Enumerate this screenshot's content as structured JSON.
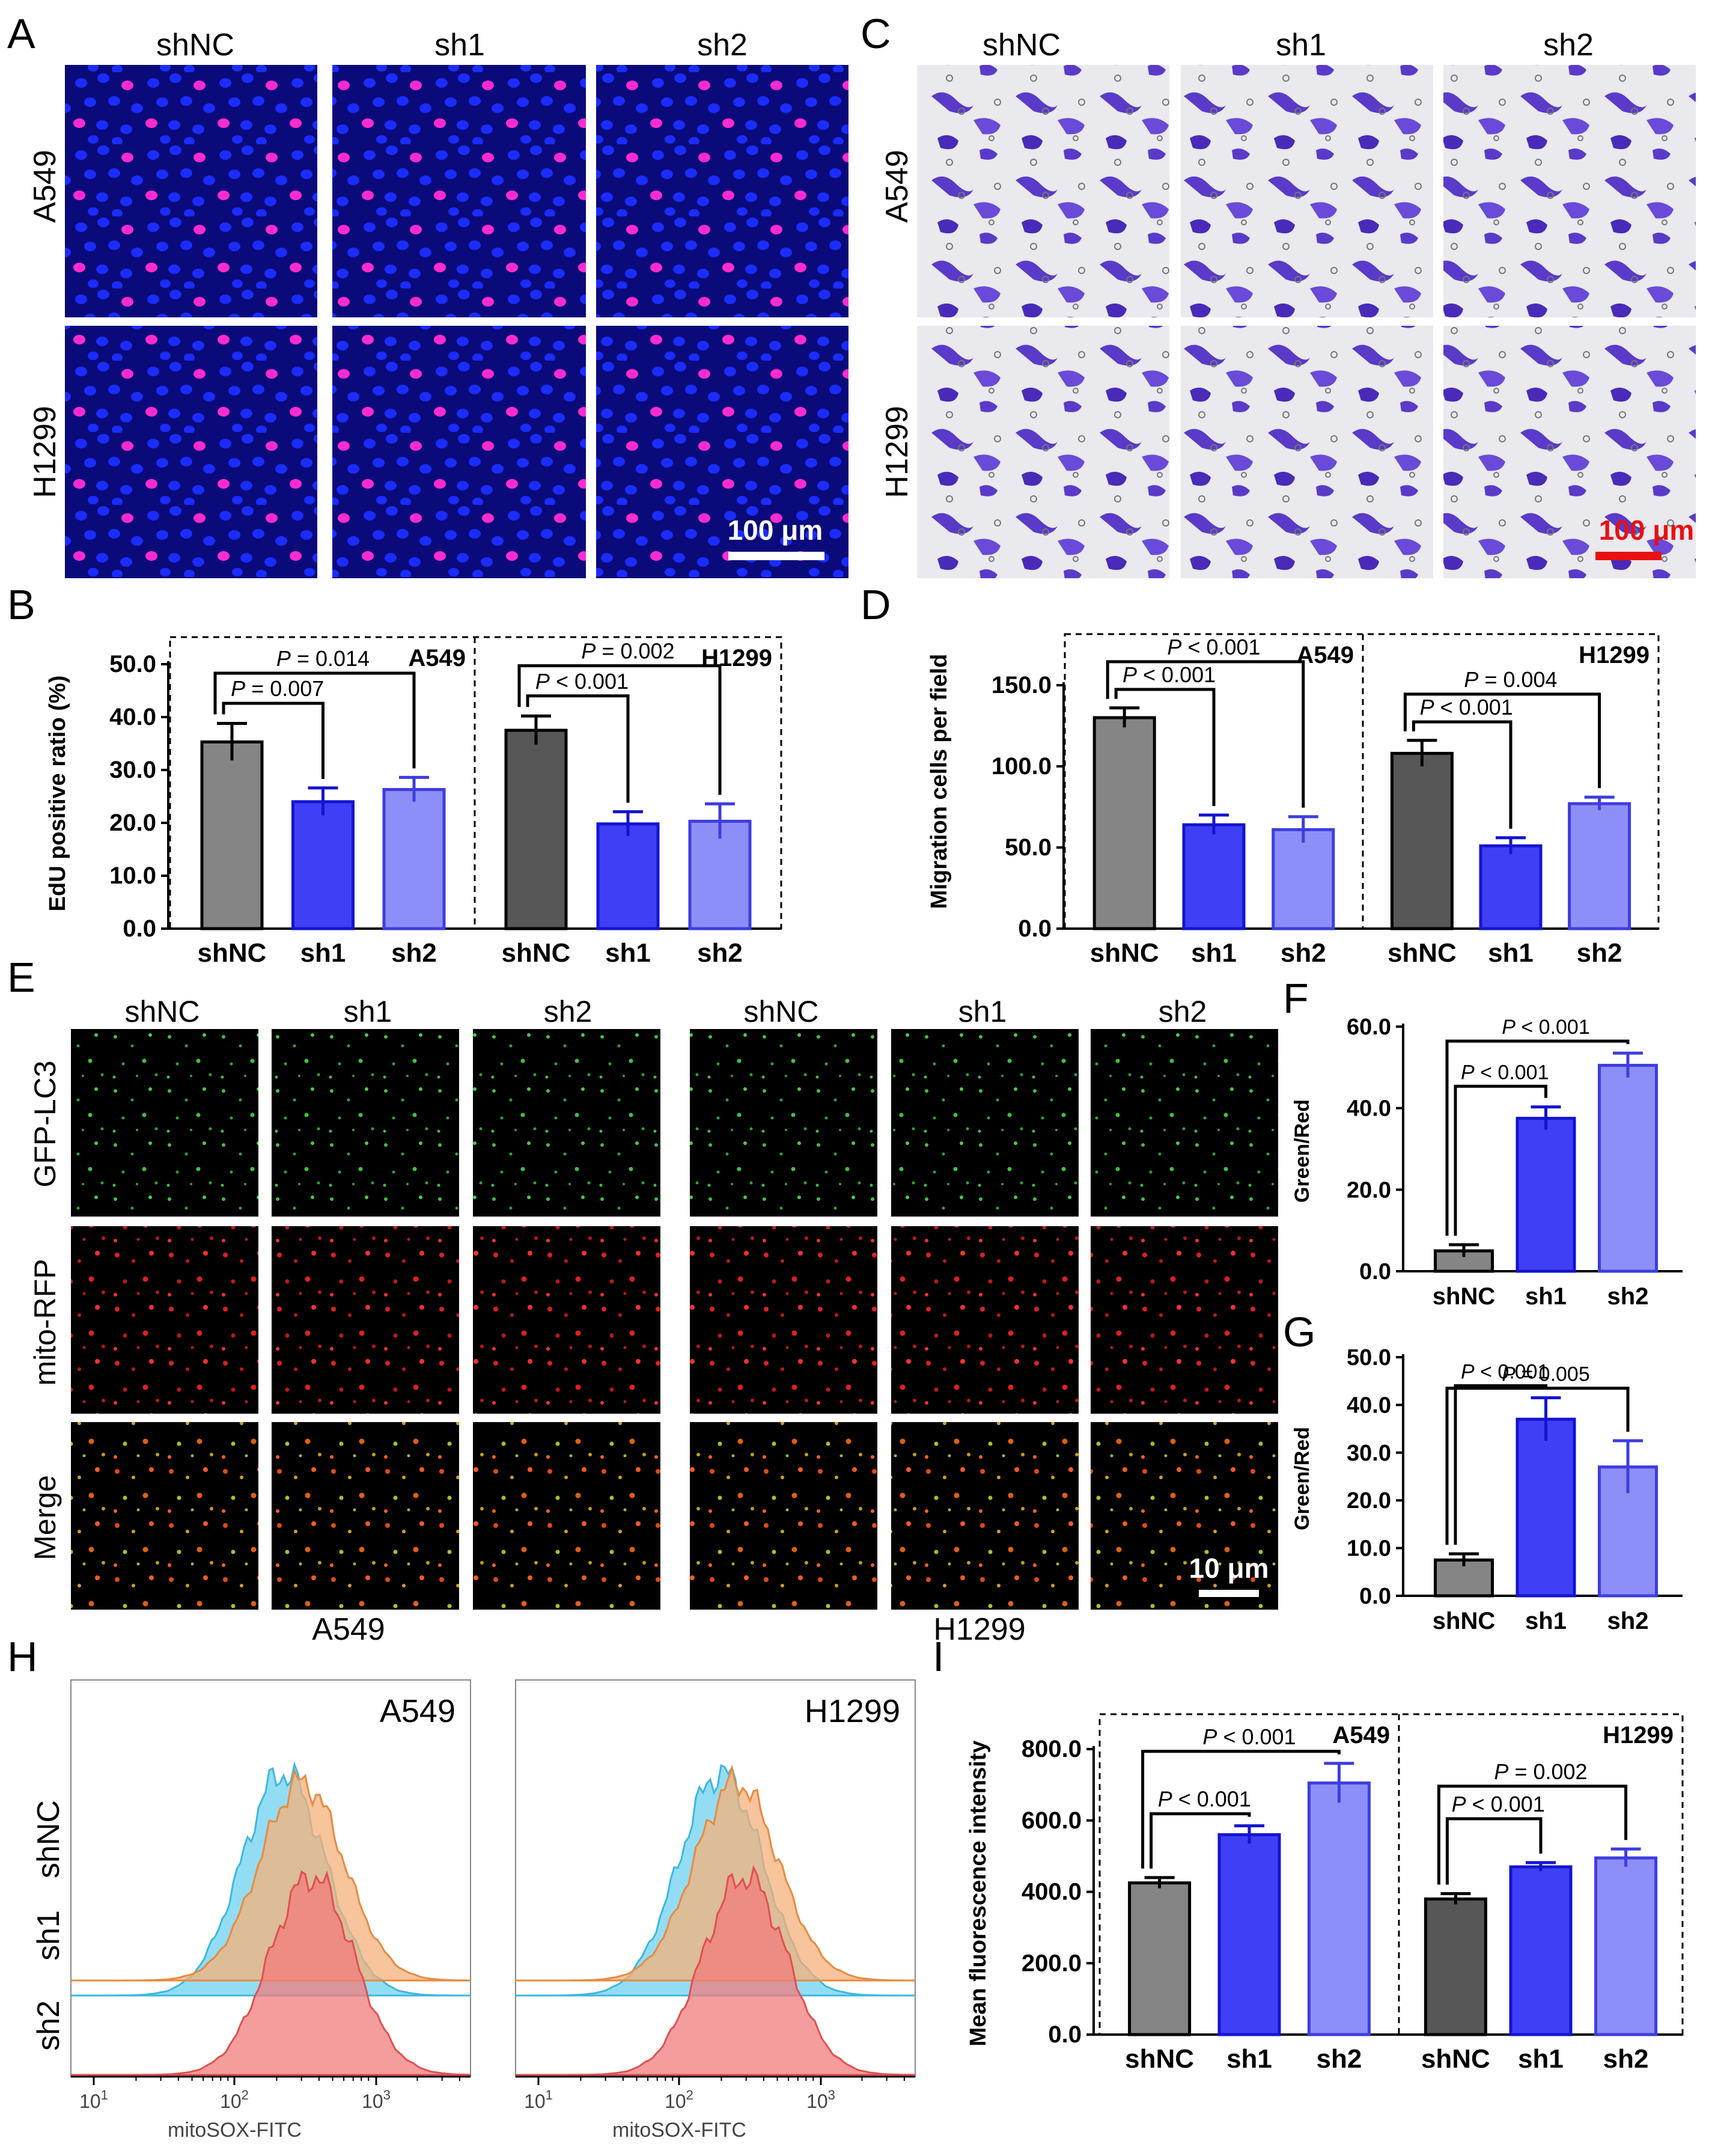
{
  "panels": {
    "A": "A",
    "B": "B",
    "C": "C",
    "D": "D",
    "E": "E",
    "F": "F",
    "G": "G",
    "H": "H",
    "I": "I"
  },
  "groups": [
    "shNC",
    "sh1",
    "sh2"
  ],
  "cell_lines": [
    "A549",
    "H1299"
  ],
  "panelE_rows": [
    "GFP-LC3",
    "mito-RFP",
    "Merge"
  ],
  "scalebars": {
    "A": "100 μm",
    "C": "100 μm",
    "E": "10 μm"
  },
  "colors": {
    "gray": "#858585",
    "darkgray": "#575757",
    "blue": "#3f3ff5",
    "lightblue": "#8e8ef8",
    "edu_bg": "#0a0a7a",
    "edu_cell": "#1a2cff",
    "edu_pos": "#ff2bd0",
    "crystal": "#5a3ac8",
    "hist_cyan": "#6fd2f0",
    "hist_orange": "#f6b07a",
    "hist_red": "#f27c7c"
  },
  "chart_data": [
    {
      "id": "B",
      "type": "bar",
      "ylabel": "EdU positive ratio (%)",
      "ylim": [
        0,
        50
      ],
      "yticks": [
        "0.0",
        "10.0",
        "20.0",
        "30.0",
        "40.0",
        "50.0"
      ],
      "categories": [
        "shNC",
        "sh1",
        "sh2",
        "shNC",
        "sh1",
        "sh2"
      ],
      "values": [
        35.3,
        24.0,
        26.3,
        37.5,
        19.8,
        20.3
      ],
      "errors": [
        3.5,
        2.6,
        2.3,
        2.7,
        2.3,
        3.3
      ],
      "block_labels": [
        "A549",
        "H1299"
      ],
      "pvalues": [
        {
          "from": 0,
          "to": 1,
          "text": "P = 0.007"
        },
        {
          "from": 0,
          "to": 2,
          "text": "P = 0.014"
        },
        {
          "from": 3,
          "to": 4,
          "text": "P < 0.001"
        },
        {
          "from": 3,
          "to": 5,
          "text": "P = 0.002"
        }
      ]
    },
    {
      "id": "D",
      "type": "bar",
      "ylabel": "Migration cells per field",
      "ylim": [
        0,
        150
      ],
      "yticks": [
        "0.0",
        "50.0",
        "100.0",
        "150.0"
      ],
      "categories": [
        "shNC",
        "sh1",
        "sh2",
        "shNC",
        "sh1",
        "sh2"
      ],
      "values": [
        130,
        64,
        61,
        108,
        51,
        77
      ],
      "errors": [
        6,
        6,
        8,
        8,
        5,
        4
      ],
      "block_labels": [
        "A549",
        "H1299"
      ],
      "pvalues": [
        {
          "from": 0,
          "to": 1,
          "text": "P < 0.001"
        },
        {
          "from": 0,
          "to": 2,
          "text": "P < 0.001"
        },
        {
          "from": 3,
          "to": 4,
          "text": "P < 0.001"
        },
        {
          "from": 3,
          "to": 5,
          "text": "P = 0.004"
        }
      ]
    },
    {
      "id": "F",
      "type": "bar",
      "ylabel": "Green/Red",
      "ylim": [
        0,
        60
      ],
      "yticks": [
        "0.0",
        "20.0",
        "40.0",
        "60.0"
      ],
      "categories": [
        "shNC",
        "sh1",
        "sh2"
      ],
      "values": [
        5,
        37.5,
        50.5
      ],
      "errors": [
        1.5,
        2.8,
        3.0
      ],
      "pvalues": [
        {
          "from": 0,
          "to": 1,
          "text": "P < 0.001"
        },
        {
          "from": 0,
          "to": 2,
          "text": "P < 0.001"
        }
      ]
    },
    {
      "id": "G",
      "type": "bar",
      "ylabel": "Green/Red",
      "ylim": [
        0,
        50
      ],
      "yticks": [
        "0.0",
        "10.0",
        "20.0",
        "30.0",
        "40.0",
        "50.0"
      ],
      "categories": [
        "shNC",
        "sh1",
        "sh2"
      ],
      "values": [
        7.5,
        37,
        27
      ],
      "errors": [
        1.3,
        4.5,
        5.5
      ],
      "pvalues": [
        {
          "from": 0,
          "to": 1,
          "text": "P < 0.001"
        },
        {
          "from": 0,
          "to": 2,
          "text": "P = 0.005"
        }
      ]
    },
    {
      "id": "I",
      "type": "bar",
      "ylabel": "Mean fluorescence intensity",
      "ylim": [
        0,
        800
      ],
      "yticks": [
        "0.0",
        "200.0",
        "400.0",
        "600.0",
        "800.0"
      ],
      "categories": [
        "shNC",
        "sh1",
        "sh2",
        "shNC",
        "sh1",
        "sh2"
      ],
      "values": [
        425,
        560,
        705,
        380,
        470,
        495
      ],
      "errors": [
        15,
        25,
        55,
        15,
        12,
        25
      ],
      "block_labels": [
        "A549",
        "H1299"
      ],
      "pvalues": [
        {
          "from": 0,
          "to": 1,
          "text": "P < 0.001"
        },
        {
          "from": 0,
          "to": 2,
          "text": "P < 0.001"
        },
        {
          "from": 3,
          "to": 4,
          "text": "P < 0.001"
        },
        {
          "from": 3,
          "to": 5,
          "text": "P = 0.002"
        }
      ]
    }
  ],
  "histograms": {
    "xlabel": "mitoSOX-FITC",
    "xticks": [
      {
        "base": "10",
        "exp": "1"
      },
      {
        "base": "10",
        "exp": "2"
      },
      {
        "base": "10",
        "exp": "3"
      }
    ],
    "row_labels": [
      "shNC",
      "sh1",
      "sh2"
    ],
    "titles": [
      "A549",
      "H1299"
    ]
  }
}
